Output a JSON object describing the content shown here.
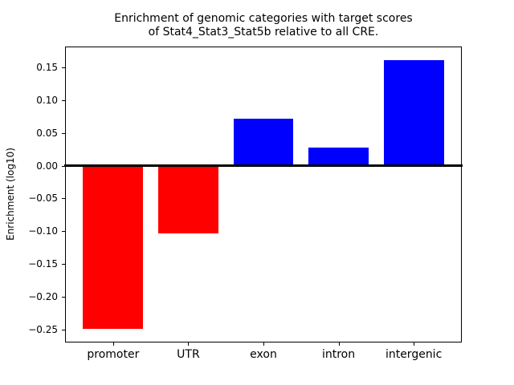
{
  "figure": {
    "background": "#ffffff",
    "title_line1": "Enrichment of genomic categories with target scores",
    "title_line2": "of Stat4_Stat3_Stat5b relative to all CRE.",
    "ylabel": "Enrichment (log10)"
  },
  "chart_data": {
    "type": "bar",
    "title": "Enrichment of genomic categories with target scores\nof Stat4_Stat3_Stat5b relative to all CRE.",
    "xlabel": "",
    "ylabel": "Enrichment (log10)",
    "categories": [
      "promoter",
      "UTR",
      "exon",
      "intron",
      "intergenic"
    ],
    "values": [
      -0.249,
      -0.103,
      0.072,
      0.028,
      0.161
    ],
    "bar_width": 0.8,
    "positive_color": "#0000ff",
    "negative_color": "#ff0000",
    "axis_color": "#000000",
    "text_color": "#000000",
    "background_color": "#ffffff",
    "ylim": [
      -0.2695,
      0.1815
    ],
    "xlim": [
      -0.64,
      4.64
    ],
    "yticks": [
      0.15,
      0.1,
      0.05,
      0.0,
      -0.05,
      -0.1,
      -0.15,
      -0.2,
      -0.25
    ],
    "ytick_labels": [
      "0.15",
      "0.10",
      "0.05",
      "0.00",
      "−0.05",
      "−0.10",
      "−0.15",
      "−0.20",
      "−0.25"
    ],
    "grid": false,
    "zero_line": true,
    "legend": null
  }
}
